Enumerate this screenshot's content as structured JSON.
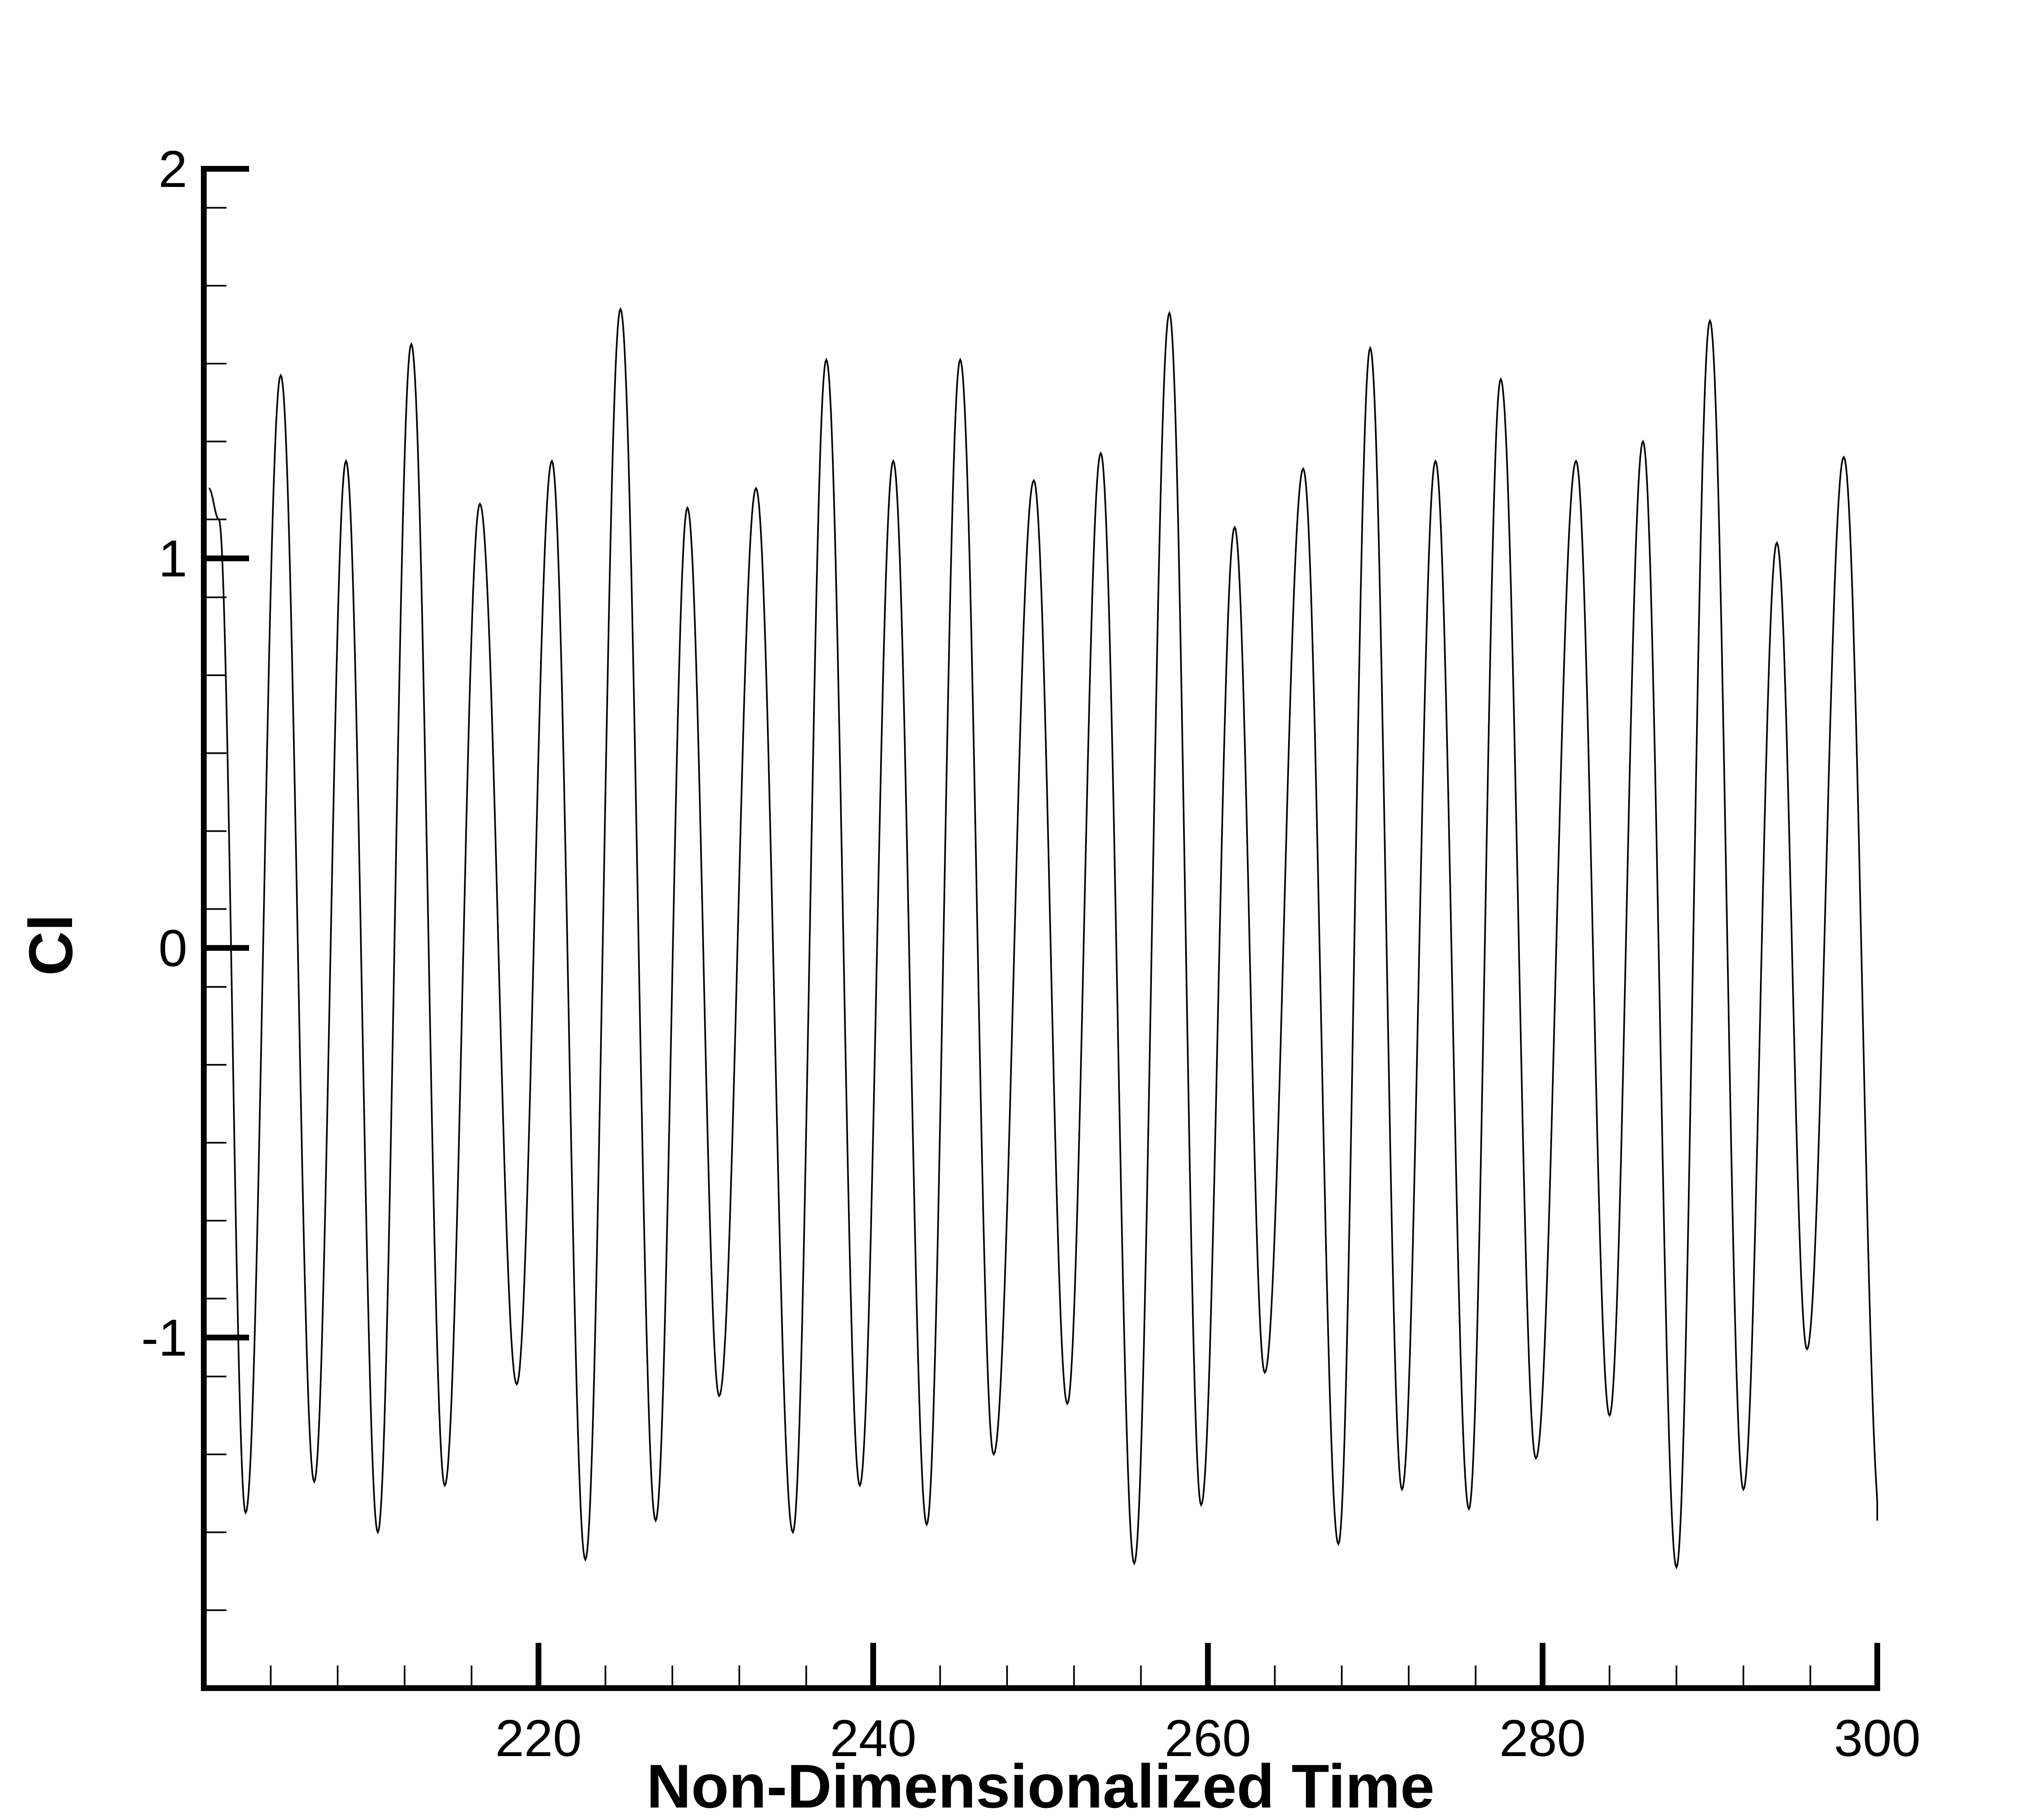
{
  "chart_data": {
    "type": "line",
    "title": "",
    "xlabel": "Non-Dimensionalized Time",
    "ylabel": "Cl",
    "xlim": [
      200,
      300
    ],
    "ylim": [
      -1.9,
      2
    ],
    "x_ticks": [
      220,
      240,
      260,
      280,
      300
    ],
    "y_ticks": [
      -1,
      0,
      1,
      2
    ],
    "grid": false,
    "legend": "none",
    "series": [
      {
        "color": "#000000",
        "extrema": [
          [
            200.3,
            1.18
          ],
          [
            200.9,
            1.1
          ],
          [
            202.5,
            -1.45
          ],
          [
            204.6,
            1.47
          ],
          [
            206.6,
            -1.37
          ],
          [
            208.5,
            1.25
          ],
          [
            210.4,
            -1.5
          ],
          [
            212.4,
            1.55
          ],
          [
            214.4,
            -1.38
          ],
          [
            216.5,
            1.14
          ],
          [
            218.7,
            -1.12
          ],
          [
            220.8,
            1.25
          ],
          [
            222.8,
            -1.57
          ],
          [
            224.9,
            1.64
          ],
          [
            227.0,
            -1.47
          ],
          [
            228.9,
            1.13
          ],
          [
            230.8,
            -1.15
          ],
          [
            233.0,
            1.18
          ],
          [
            235.2,
            -1.5
          ],
          [
            237.2,
            1.51
          ],
          [
            239.2,
            -1.38
          ],
          [
            241.2,
            1.25
          ],
          [
            243.2,
            -1.48
          ],
          [
            245.2,
            1.51
          ],
          [
            247.2,
            -1.3
          ],
          [
            249.6,
            1.2
          ],
          [
            251.6,
            -1.17
          ],
          [
            253.6,
            1.27
          ],
          [
            255.6,
            -1.58
          ],
          [
            257.7,
            1.63
          ],
          [
            259.6,
            -1.43
          ],
          [
            261.6,
            1.08
          ],
          [
            263.4,
            -1.09
          ],
          [
            265.7,
            1.23
          ],
          [
            267.8,
            -1.53
          ],
          [
            269.7,
            1.54
          ],
          [
            271.6,
            -1.39
          ],
          [
            273.6,
            1.25
          ],
          [
            275.6,
            -1.44
          ],
          [
            277.5,
            1.46
          ],
          [
            279.6,
            -1.31
          ],
          [
            282.0,
            1.25
          ],
          [
            284.0,
            -1.2
          ],
          [
            286.0,
            1.3
          ],
          [
            288.0,
            -1.59
          ],
          [
            290.0,
            1.61
          ],
          [
            292.0,
            -1.39
          ],
          [
            294.0,
            1.04
          ],
          [
            295.8,
            -1.03
          ],
          [
            298.0,
            1.26
          ],
          [
            300.2,
            -1.47
          ]
        ]
      }
    ]
  }
}
